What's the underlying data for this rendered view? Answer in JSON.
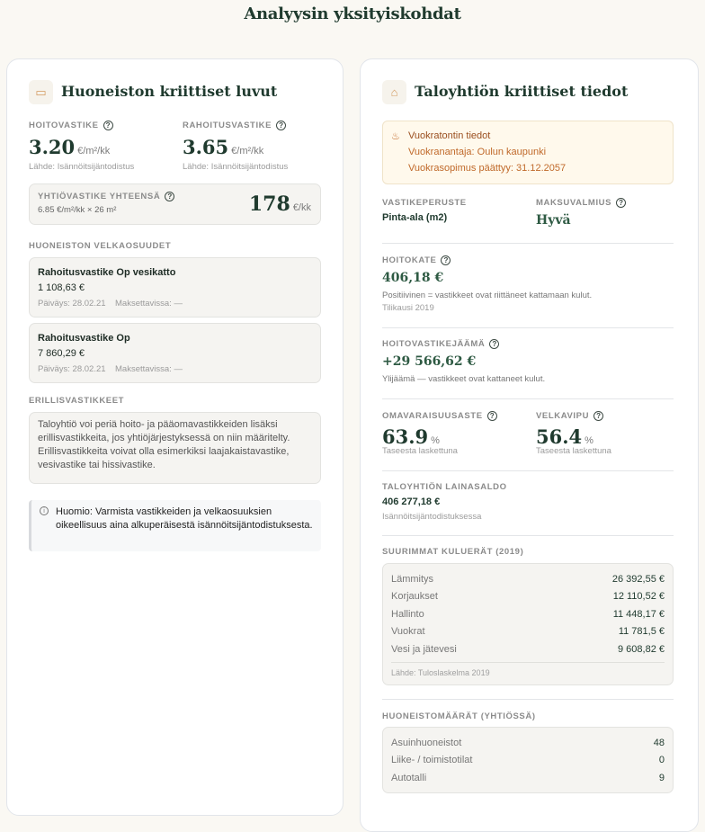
{
  "page_title": "Analyysin yksityiskohdat",
  "left": {
    "title": "Huoneiston kriittiset luvut",
    "icon": "wallet-icon",
    "hoitovastike": {
      "label": "HOITOVASTIKE",
      "value": "3.20",
      "unit": "€/m²/kk",
      "source": "Lähde: Isännöitsijäntodistus"
    },
    "rahoitusvastike": {
      "label": "RAHOITUSVASTIKE",
      "value": "3.65",
      "unit": "€/m²/kk",
      "source": "Lähde: Isännöitsijäntodistus"
    },
    "total": {
      "label": "YHTIÖVASTIKE YHTEENSÄ",
      "formula": "6.85 €/m²/kk × 26 m²",
      "value": "178",
      "unit": "€/kk"
    },
    "debts_label": "HUONEISTON VELKAOSUUDET",
    "debts": [
      {
        "name": "Rahoitusvastike Op vesikatto",
        "amount": "1 108,63 €",
        "date": "Päiväys: 28.02.21",
        "payable": "Maksettavissa: —"
      },
      {
        "name": "Rahoitusvastike Op",
        "amount": "7 860,29 €",
        "date": "Päiväys: 28.02.21",
        "payable": "Maksettavissa: —"
      }
    ],
    "extra_label": "ERILLISVASTIKKEET",
    "extra_text": "Taloyhtiö voi periä hoito- ja pääomavastikkeiden lisäksi erillisvastikkeita, jos yhtiöjärjestyksessä on niin määritelty. Erillisvastikkeita voivat olla esimerkiksi laajakaistavastike, vesivastike tai hissivastike.",
    "note": "Huomio: Varmista vastikkeiden ja velkaosuuksien oikeellisuus aina alkuperäisestä isännöitsijäntodistuksesta."
  },
  "right": {
    "title": "Taloyhtiön kriittiset tiedot",
    "icon": "bank-icon",
    "lease": {
      "title": "Vuokratontin tiedot",
      "lessor": "Vuokranantaja: Oulun kaupunki",
      "ends": "Vuokrasopimus päättyy: 31.12.2057"
    },
    "vastikeperuste": {
      "label": "VASTIKEPERUSTE",
      "value": "Pinta-ala (m2)"
    },
    "maksuvalmius": {
      "label": "MAKSUVALMIUS",
      "value": "Hyvä"
    },
    "hoitokate": {
      "label": "HOITOKATE",
      "value": "406,18 €",
      "desc": "Positiivinen = vastikkeet ovat riittäneet kattamaan kulut.",
      "period": "Tilikausi 2019"
    },
    "jaama": {
      "label": "HOITOVASTIKEJÄÄMÄ",
      "value": "+29 566,62 €",
      "desc": "Ylijäämä — vastikkeet ovat kattaneet kulut."
    },
    "omavaraisuus": {
      "label": "OMAVARAISUUSASTE",
      "value": "63.9",
      "unit": "%",
      "sub": "Taseesta laskettuna"
    },
    "velkavipu": {
      "label": "VELKAVIPU",
      "value": "56.4",
      "unit": "%",
      "sub": "Taseesta laskettuna"
    },
    "lainasaldo": {
      "label": "TALOYHTIÖN LAINASALDO",
      "value": "406 277,18 €",
      "sub": "Isännöitsijäntodistuksessa"
    },
    "costs_label": "SUURIMMAT KULUERÄT (2019)",
    "costs": [
      {
        "k": "Lämmitys",
        "v": "26 392,55 €"
      },
      {
        "k": "Korjaukset",
        "v": "12 110,52 €"
      },
      {
        "k": "Hallinto",
        "v": "11 448,17 €"
      },
      {
        "k": "Vuokrat",
        "v": "11 781,5 €"
      },
      {
        "k": "Vesi ja jätevesi",
        "v": "9 608,82 €"
      }
    ],
    "costs_source": "Lähde: Tuloslaskelma 2019",
    "units_label": "HUONEISTOMÄÄRÄT (YHTIÖSSÄ)",
    "units": [
      {
        "k": "Asuinhuoneistot",
        "v": "48"
      },
      {
        "k": "Liike- / toimistotilat",
        "v": "0"
      },
      {
        "k": "Autotalli",
        "v": "9"
      }
    ]
  }
}
